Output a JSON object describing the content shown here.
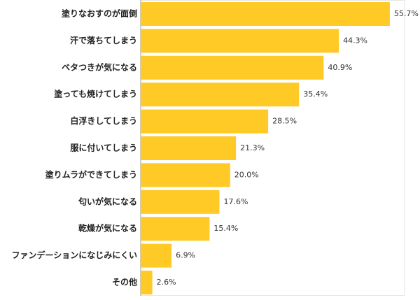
{
  "chart_data": {
    "type": "bar",
    "orientation": "horizontal",
    "color": "#ffc926",
    "categories": [
      "塗りなおすのが面倒",
      "汗で落ちてしまう",
      "ベタつきが気になる",
      "塗っても焼けてしまう",
      "白浮きしてしまう",
      "服に付いてしまう",
      "塗りムラができてしまう",
      "匂いが気になる",
      "乾燥が気になる",
      "ファンデーションになじみにくい",
      "その他"
    ],
    "values": [
      55.7,
      44.3,
      40.9,
      35.4,
      28.5,
      21.3,
      20.0,
      17.6,
      15.4,
      6.9,
      2.6
    ],
    "value_labels": [
      "55.7%",
      "44.3%",
      "40.9%",
      "35.4%",
      "28.5%",
      "21.3%",
      "20.0%",
      "17.6%",
      "15.4%",
      "6.9%",
      "2.6%"
    ]
  }
}
